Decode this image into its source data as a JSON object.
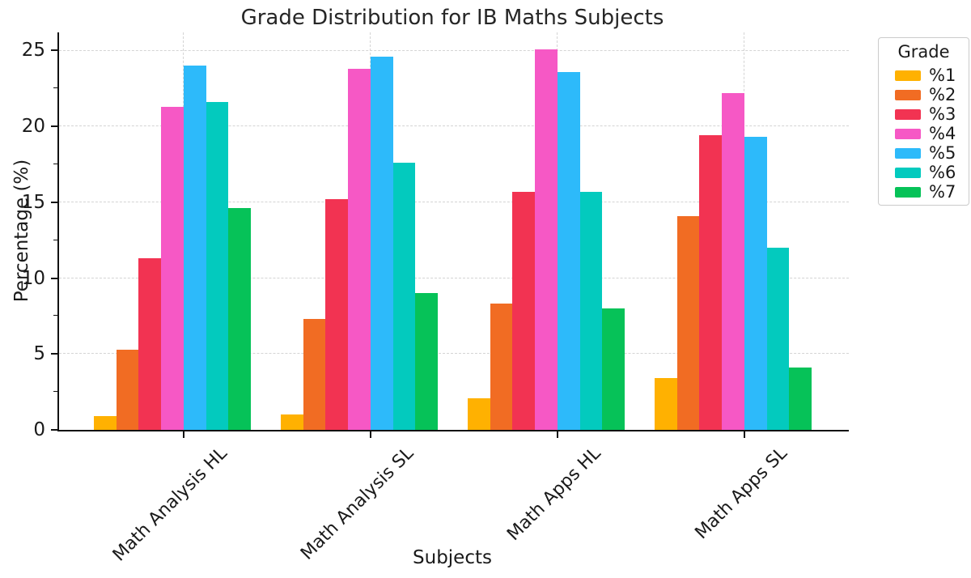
{
  "chart_data": {
    "type": "bar",
    "title": "Grade Distribution for IB Maths Subjects",
    "xlabel": "Subjects",
    "ylabel": "Percentage (%)",
    "legend_title": "Grade",
    "legend_position": "outside-upper-right",
    "grid": {
      "style": "dashed",
      "horizontal": true,
      "vertical": true
    },
    "ylim": [
      0,
      26.2
    ],
    "yticks": [
      0,
      5,
      10,
      15,
      20,
      25
    ],
    "yticks_minor": [
      2.5,
      7.5,
      12.5,
      17.5,
      22.5
    ],
    "categories": [
      "Math Analysis HL",
      "Math Analysis SL",
      "Math Apps HL",
      "Math Apps SL"
    ],
    "series": [
      {
        "name": "%1",
        "color": "#ffb101",
        "values": [
          0.9,
          1.0,
          2.1,
          3.4
        ]
      },
      {
        "name": "%2",
        "color": "#f16c23",
        "values": [
          5.3,
          7.3,
          8.3,
          14.1
        ]
      },
      {
        "name": "%3",
        "color": "#f23352",
        "values": [
          11.3,
          15.2,
          15.7,
          19.4
        ]
      },
      {
        "name": "%4",
        "color": "#f658c5",
        "values": [
          21.3,
          23.8,
          25.1,
          22.2
        ]
      },
      {
        "name": "%5",
        "color": "#2dbafa",
        "values": [
          24.0,
          24.6,
          23.6,
          19.3
        ]
      },
      {
        "name": "%6",
        "color": "#03cabe",
        "values": [
          21.6,
          17.6,
          15.7,
          12.0
        ]
      },
      {
        "name": "%7",
        "color": "#06c258",
        "values": [
          14.6,
          9.0,
          8.0,
          4.1
        ]
      }
    ],
    "axis_colors": {
      "spine": "#111111",
      "grid": "#d4d4d4",
      "text": "#1a1a1a"
    }
  }
}
